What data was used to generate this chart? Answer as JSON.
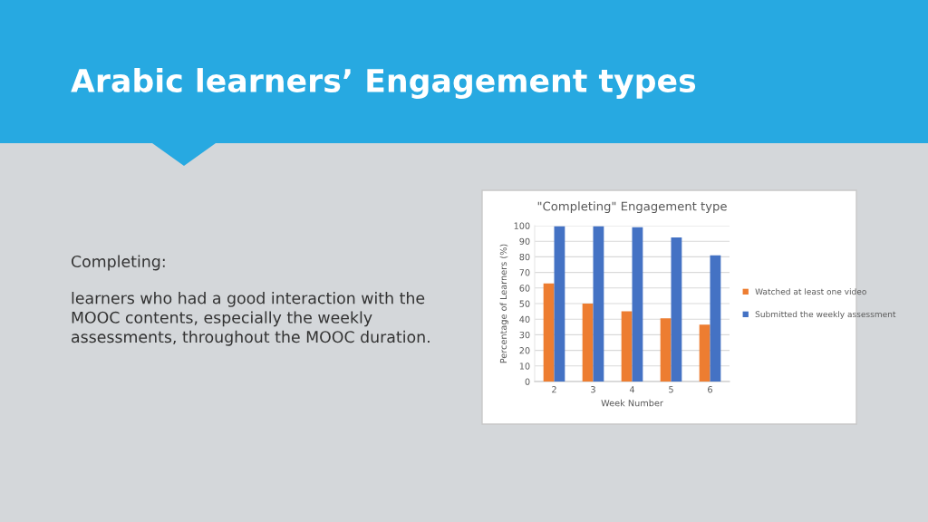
{
  "chart_data": {
    "type": "bar",
    "title": "Arabic learners’ Engagement types",
    "subtitle": "\"Completing\" Engagement type",
    "xlabel": "Week Number",
    "ylabel": "Percentage of Learners (%)",
    "annotations": [
      "Completing:",
      "learners who had a good interaction with the MOOC contents, especially the weekly assessments, throughout the MOOC duration."
    ],
    "categories": [
      "2",
      "3",
      "4",
      "5",
      "6"
    ],
    "series": [
      {
        "name": "Watched at least one video",
        "color": "#ed7d31",
        "values": [
          63,
          50,
          45,
          40.5,
          36.5
        ]
      },
      {
        "name": "Submitted the weekly assessment",
        "color": "#4472c4",
        "values": [
          99.5,
          99.5,
          99,
          92.5,
          81
        ]
      }
    ],
    "ylim": [
      0,
      100
    ],
    "yticks": [
      0,
      10,
      20,
      30,
      40,
      50,
      60,
      70,
      80,
      90,
      100
    ],
    "grid": "y",
    "legend": "right"
  }
}
